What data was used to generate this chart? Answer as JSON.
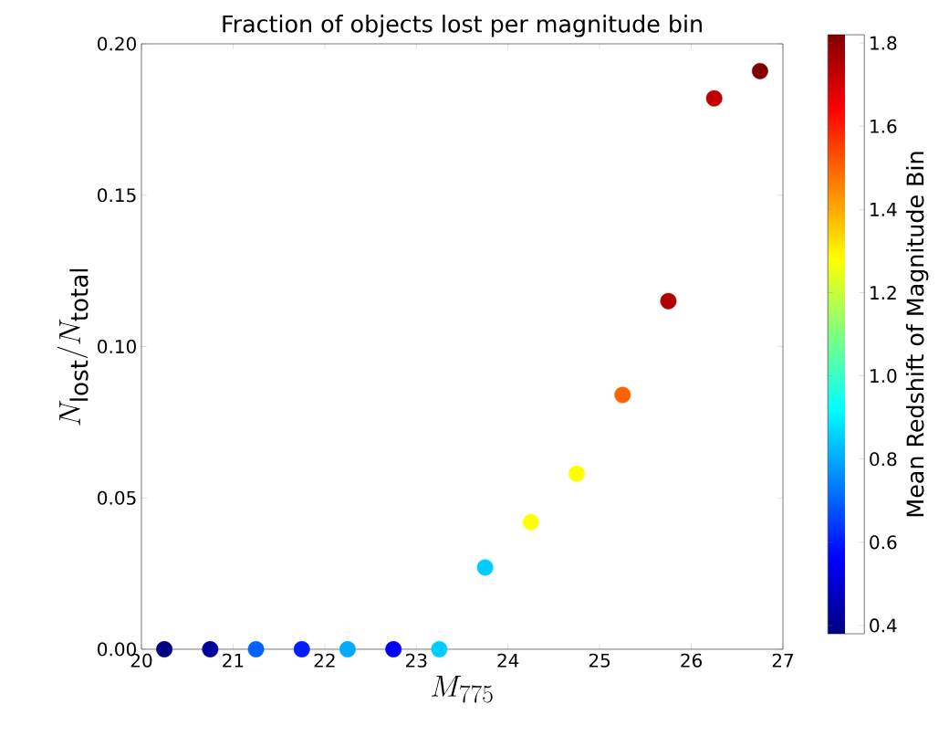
{
  "chart_data": {
    "type": "scatter",
    "title": "Fraction of objects lost per magnitude bin",
    "xlabel": "M_{775}",
    "ylabel": "N_{\\mathrm{lost}}/N_{\\mathrm{total}}",
    "clabel": "Mean Redshift of Magnitude Bin",
    "x": [
      20.25,
      20.75,
      21.25,
      21.75,
      22.25,
      22.75,
      23.25,
      23.75,
      24.25,
      24.75,
      25.25,
      25.75,
      26.25,
      26.75
    ],
    "values": [
      0,
      0,
      0,
      0,
      0,
      0,
      0,
      0.027,
      0.042,
      0.058,
      0.084,
      0.115,
      0.182,
      0.191
    ],
    "cvalues": [
      0.38,
      0.42,
      0.7,
      0.6,
      0.8,
      0.55,
      0.85,
      0.85,
      1.28,
      1.28,
      1.5,
      1.75,
      1.73,
      1.82
    ],
    "clim": [
      0.38,
      1.82
    ],
    "cticks": [
      0.4,
      0.6,
      0.8,
      {
        "value": 1,
        "label": "1.0"
      },
      1.2,
      1.4,
      1.6,
      1.8
    ],
    "xlim": [
      20,
      27
    ],
    "xticks": [
      20,
      21,
      22,
      23,
      24,
      25,
      26,
      27
    ],
    "ylim": [
      0,
      0.2
    ],
    "yticks": [
      {
        "value": 0,
        "label": "0.00"
      },
      {
        "value": 0.05,
        "label": "0.05"
      },
      {
        "value": 0.1,
        "label": "0.10"
      },
      {
        "value": 0.15,
        "label": "0.15"
      },
      {
        "value": 0.2,
        "label": "0.20"
      }
    ],
    "marker": "circle",
    "grid": false
  }
}
